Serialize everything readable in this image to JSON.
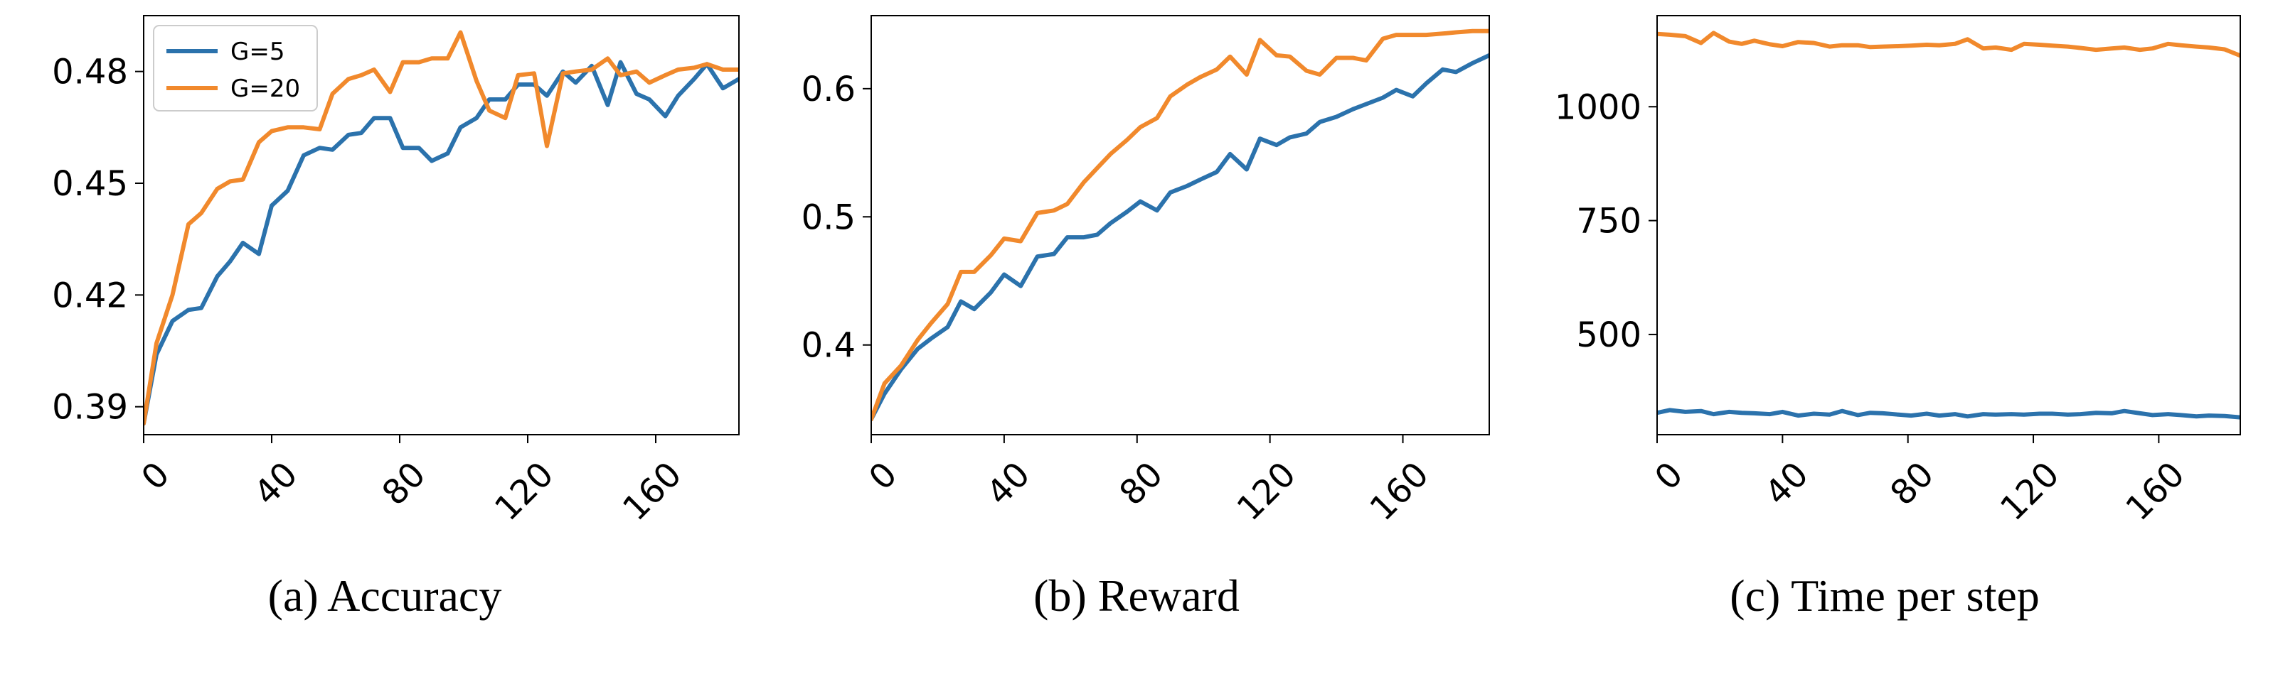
{
  "colors": {
    "G=5": "#2b72ac",
    "G=20": "#f1892c"
  },
  "legend": [
    "G=5",
    "G=20"
  ],
  "chart_data": [
    {
      "type": "line",
      "caption": "(a) Accuracy",
      "xlim": [
        0,
        186
      ],
      "ylim": [
        0.3825,
        0.495
      ],
      "xticks": [
        0,
        40,
        80,
        120,
        160
      ],
      "yticks": [
        0.39,
        0.42,
        0.45,
        0.48
      ],
      "ytick_labels": [
        "0.39",
        "0.42",
        "0.45",
        "0.48"
      ],
      "legend_position": "top-left",
      "series": [
        {
          "name": "G=5",
          "x": [
            0,
            4,
            9,
            14,
            18,
            23,
            27,
            31,
            36,
            40,
            45,
            50,
            55,
            59,
            64,
            68,
            72,
            77,
            81,
            86,
            90,
            95,
            99,
            104,
            108,
            113,
            117,
            122,
            126,
            131,
            135,
            140,
            145,
            149,
            154,
            158,
            163,
            167,
            172,
            176,
            181,
            186
          ],
          "y": [
            0.3855,
            0.404,
            0.413,
            0.416,
            0.4165,
            0.425,
            0.429,
            0.434,
            0.431,
            0.444,
            0.448,
            0.4575,
            0.4595,
            0.459,
            0.463,
            0.4635,
            0.4675,
            0.4675,
            0.4595,
            0.4595,
            0.456,
            0.458,
            0.465,
            0.4675,
            0.4725,
            0.4725,
            0.4765,
            0.4765,
            0.4735,
            0.48,
            0.477,
            0.4815,
            0.471,
            0.4825,
            0.474,
            0.4725,
            0.468,
            0.4735,
            0.478,
            0.482,
            0.4755,
            0.478
          ]
        },
        {
          "name": "G=20",
          "x": [
            0,
            4,
            9,
            14,
            18,
            23,
            27,
            31,
            36,
            40,
            45,
            50,
            55,
            59,
            64,
            68,
            72,
            77,
            81,
            86,
            90,
            95,
            99,
            104,
            108,
            113,
            117,
            122,
            126,
            131,
            135,
            140,
            145,
            149,
            154,
            158,
            163,
            167,
            172,
            176,
            181,
            186
          ],
          "y": [
            0.3855,
            0.407,
            0.42,
            0.439,
            0.442,
            0.4485,
            0.4505,
            0.451,
            0.461,
            0.464,
            0.465,
            0.465,
            0.4645,
            0.474,
            0.478,
            0.479,
            0.4805,
            0.4745,
            0.4825,
            0.4825,
            0.4835,
            0.4835,
            0.4905,
            0.4775,
            0.4695,
            0.4675,
            0.479,
            0.4795,
            0.46,
            0.4795,
            0.48,
            0.4805,
            0.4835,
            0.479,
            0.48,
            0.477,
            0.479,
            0.4805,
            0.481,
            0.482,
            0.4805,
            0.4805
          ]
        }
      ]
    },
    {
      "type": "line",
      "caption": "(b) Reward",
      "xlim": [
        0,
        186
      ],
      "ylim": [
        0.33,
        0.657
      ],
      "xticks": [
        0,
        40,
        80,
        120,
        160
      ],
      "yticks": [
        0.4,
        0.5,
        0.6
      ],
      "ytick_labels": [
        "0.4",
        "0.5",
        "0.6"
      ],
      "series": [
        {
          "name": "G=5",
          "x": [
            0,
            4,
            9,
            14,
            18,
            23,
            27,
            31,
            36,
            40,
            45,
            50,
            55,
            59,
            64,
            68,
            72,
            77,
            81,
            86,
            90,
            95,
            99,
            104,
            108,
            113,
            117,
            122,
            126,
            131,
            135,
            140,
            145,
            149,
            154,
            158,
            163,
            167,
            172,
            176,
            181,
            186
          ],
          "y": [
            0.342,
            0.362,
            0.381,
            0.397,
            0.405,
            0.414,
            0.434,
            0.428,
            0.441,
            0.455,
            0.446,
            0.469,
            0.471,
            0.484,
            0.484,
            0.486,
            0.495,
            0.504,
            0.512,
            0.505,
            0.519,
            0.524,
            0.529,
            0.535,
            0.549,
            0.537,
            0.561,
            0.556,
            0.562,
            0.565,
            0.574,
            0.578,
            0.584,
            0.588,
            0.593,
            0.599,
            0.594,
            0.604,
            0.615,
            0.613,
            0.62,
            0.626
          ]
        },
        {
          "name": "G=20",
          "x": [
            0,
            4,
            9,
            14,
            18,
            23,
            27,
            31,
            36,
            40,
            45,
            50,
            55,
            59,
            64,
            68,
            72,
            77,
            81,
            86,
            90,
            95,
            99,
            104,
            108,
            113,
            117,
            122,
            126,
            131,
            135,
            140,
            145,
            149,
            154,
            158,
            163,
            167,
            172,
            176,
            181,
            186
          ],
          "y": [
            0.342,
            0.37,
            0.384,
            0.404,
            0.417,
            0.432,
            0.457,
            0.457,
            0.47,
            0.483,
            0.481,
            0.503,
            0.505,
            0.51,
            0.527,
            0.538,
            0.549,
            0.56,
            0.57,
            0.577,
            0.594,
            0.603,
            0.609,
            0.615,
            0.625,
            0.611,
            0.638,
            0.626,
            0.625,
            0.614,
            0.611,
            0.624,
            0.624,
            0.622,
            0.639,
            0.642,
            0.642,
            0.642,
            0.643,
            0.644,
            0.645,
            0.645
          ]
        }
      ]
    },
    {
      "type": "line",
      "caption": "(c) Time per step",
      "xlim": [
        0,
        186
      ],
      "ylim": [
        280,
        1200
      ],
      "xticks": [
        0,
        40,
        80,
        120,
        160
      ],
      "yticks": [
        500,
        750,
        1000
      ],
      "ytick_labels": [
        "500",
        "750",
        "1000"
      ],
      "series": [
        {
          "name": "G=5",
          "x": [
            0,
            4,
            9,
            14,
            18,
            23,
            27,
            31,
            36,
            40,
            45,
            50,
            55,
            59,
            64,
            68,
            72,
            77,
            81,
            86,
            90,
            95,
            99,
            104,
            108,
            113,
            117,
            122,
            126,
            131,
            135,
            140,
            145,
            149,
            154,
            158,
            163,
            167,
            172,
            176,
            181,
            186
          ],
          "y": [
            328,
            334,
            330,
            332,
            325,
            330,
            328,
            327,
            325,
            330,
            322,
            326,
            324,
            332,
            323,
            328,
            327,
            324,
            322,
            326,
            322,
            325,
            320,
            325,
            324,
            325,
            324,
            326,
            326,
            324,
            325,
            328,
            327,
            332,
            327,
            323,
            325,
            323,
            320,
            322,
            321,
            318
          ]
        },
        {
          "name": "G=20",
          "x": [
            0,
            4,
            9,
            14,
            18,
            23,
            27,
            31,
            36,
            40,
            45,
            50,
            55,
            59,
            64,
            68,
            72,
            77,
            81,
            86,
            90,
            95,
            99,
            104,
            108,
            113,
            117,
            122,
            126,
            131,
            135,
            140,
            145,
            149,
            154,
            158,
            163,
            167,
            172,
            176,
            181,
            186
          ],
          "y": [
            1160,
            1158,
            1155,
            1140,
            1162,
            1143,
            1138,
            1145,
            1137,
            1133,
            1142,
            1140,
            1132,
            1135,
            1135,
            1131,
            1132,
            1133,
            1134,
            1136,
            1135,
            1138,
            1148,
            1128,
            1130,
            1125,
            1138,
            1136,
            1134,
            1132,
            1129,
            1125,
            1128,
            1130,
            1125,
            1128,
            1138,
            1135,
            1132,
            1130,
            1126,
            1112
          ]
        }
      ]
    }
  ]
}
